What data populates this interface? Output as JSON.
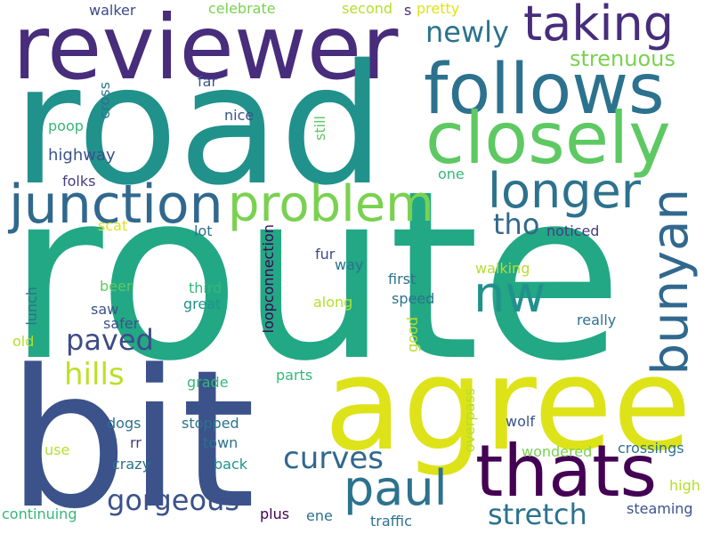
{
  "words": [
    {
      "text": "route",
      "color": "#22a884"
    },
    {
      "text": "road",
      "color": "#21918c"
    },
    {
      "text": "bit",
      "color": "#3b528b"
    },
    {
      "text": "agree",
      "color": "#dde318"
    },
    {
      "text": "reviewer",
      "color": "#472d7b"
    },
    {
      "text": "follows",
      "color": "#2c728e"
    },
    {
      "text": "closely",
      "color": "#5ec962"
    },
    {
      "text": "thats",
      "color": "#440154"
    },
    {
      "text": "junction",
      "color": "#31688e"
    },
    {
      "text": "problem",
      "color": "#7ad151"
    },
    {
      "text": "taking",
      "color": "#472d7b"
    },
    {
      "text": "longer",
      "color": "#2c728e"
    },
    {
      "text": "paul",
      "color": "#2c728e"
    },
    {
      "text": "bunyan",
      "color": "#31688e"
    },
    {
      "text": "nw",
      "color": "#21918c"
    },
    {
      "text": "stretch",
      "color": "#2c728e"
    },
    {
      "text": "curves",
      "color": "#31688e"
    },
    {
      "text": "gorgeous",
      "color": "#3b528b"
    },
    {
      "text": "paved",
      "color": "#3e4a89"
    },
    {
      "text": "hills",
      "color": "#bddf26"
    },
    {
      "text": "newly",
      "color": "#2c728e"
    },
    {
      "text": "strenuous",
      "color": "#7ad151"
    },
    {
      "text": "tho",
      "color": "#31688e"
    },
    {
      "text": "highway",
      "color": "#3b528b"
    },
    {
      "text": "folks",
      "color": "#433e85"
    },
    {
      "text": "walker",
      "color": "#3e4a89"
    },
    {
      "text": "celebrate",
      "color": "#7ad151"
    },
    {
      "text": "second",
      "color": "#b5de2b"
    },
    {
      "text": "s",
      "color": "#472d7b"
    },
    {
      "text": "pretty",
      "color": "#dde318"
    },
    {
      "text": "far",
      "color": "#3b528b"
    },
    {
      "text": "nice",
      "color": "#3b528b"
    },
    {
      "text": "cross",
      "color": "#2c728e"
    },
    {
      "text": "poop",
      "color": "#35b779"
    },
    {
      "text": "still",
      "color": "#5ec962"
    },
    {
      "text": "one",
      "color": "#35b779"
    },
    {
      "text": "scat",
      "color": "#dde318"
    },
    {
      "text": "lot",
      "color": "#2c728e"
    },
    {
      "text": "noticed",
      "color": "#433e85"
    },
    {
      "text": "fur",
      "color": "#3e4a89"
    },
    {
      "text": "way",
      "color": "#2c728e"
    },
    {
      "text": "first",
      "color": "#2c728e"
    },
    {
      "text": "walking",
      "color": "#b5de2b"
    },
    {
      "text": "beer",
      "color": "#5ec962"
    },
    {
      "text": "third",
      "color": "#35b779"
    },
    {
      "text": "loopconnection",
      "color": "#440154"
    },
    {
      "text": "speed",
      "color": "#2c728e"
    },
    {
      "text": "lunch",
      "color": "#2c728e"
    },
    {
      "text": "saw",
      "color": "#3b528b"
    },
    {
      "text": "great",
      "color": "#21918c"
    },
    {
      "text": "along",
      "color": "#b5de2b"
    },
    {
      "text": "safer",
      "color": "#3b528b"
    },
    {
      "text": "good",
      "color": "#b5de2b"
    },
    {
      "text": "really",
      "color": "#2c728e"
    },
    {
      "text": "old",
      "color": "#b5de2b"
    },
    {
      "text": "parts",
      "color": "#35b779"
    },
    {
      "text": "grade",
      "color": "#35b779"
    },
    {
      "text": "overpass",
      "color": "#b5de2b"
    },
    {
      "text": "dogs",
      "color": "#2c728e"
    },
    {
      "text": "stopped",
      "color": "#2c728e"
    },
    {
      "text": "wolf",
      "color": "#3b528b"
    },
    {
      "text": "rr",
      "color": "#433e85"
    },
    {
      "text": "town",
      "color": "#2c728e"
    },
    {
      "text": "use",
      "color": "#b5de2b"
    },
    {
      "text": "crazy",
      "color": "#2c728e"
    },
    {
      "text": "back",
      "color": "#21918c"
    },
    {
      "text": "wondered",
      "color": "#7ad151"
    },
    {
      "text": "crossings",
      "color": "#2c728e"
    },
    {
      "text": "high",
      "color": "#b5de2b"
    },
    {
      "text": "continuing",
      "color": "#35b779"
    },
    {
      "text": "plus",
      "color": "#440154"
    },
    {
      "text": "ene",
      "color": "#2c728e"
    },
    {
      "text": "traffic",
      "color": "#2c728e"
    },
    {
      "text": "steaming",
      "color": "#3b528b"
    }
  ]
}
